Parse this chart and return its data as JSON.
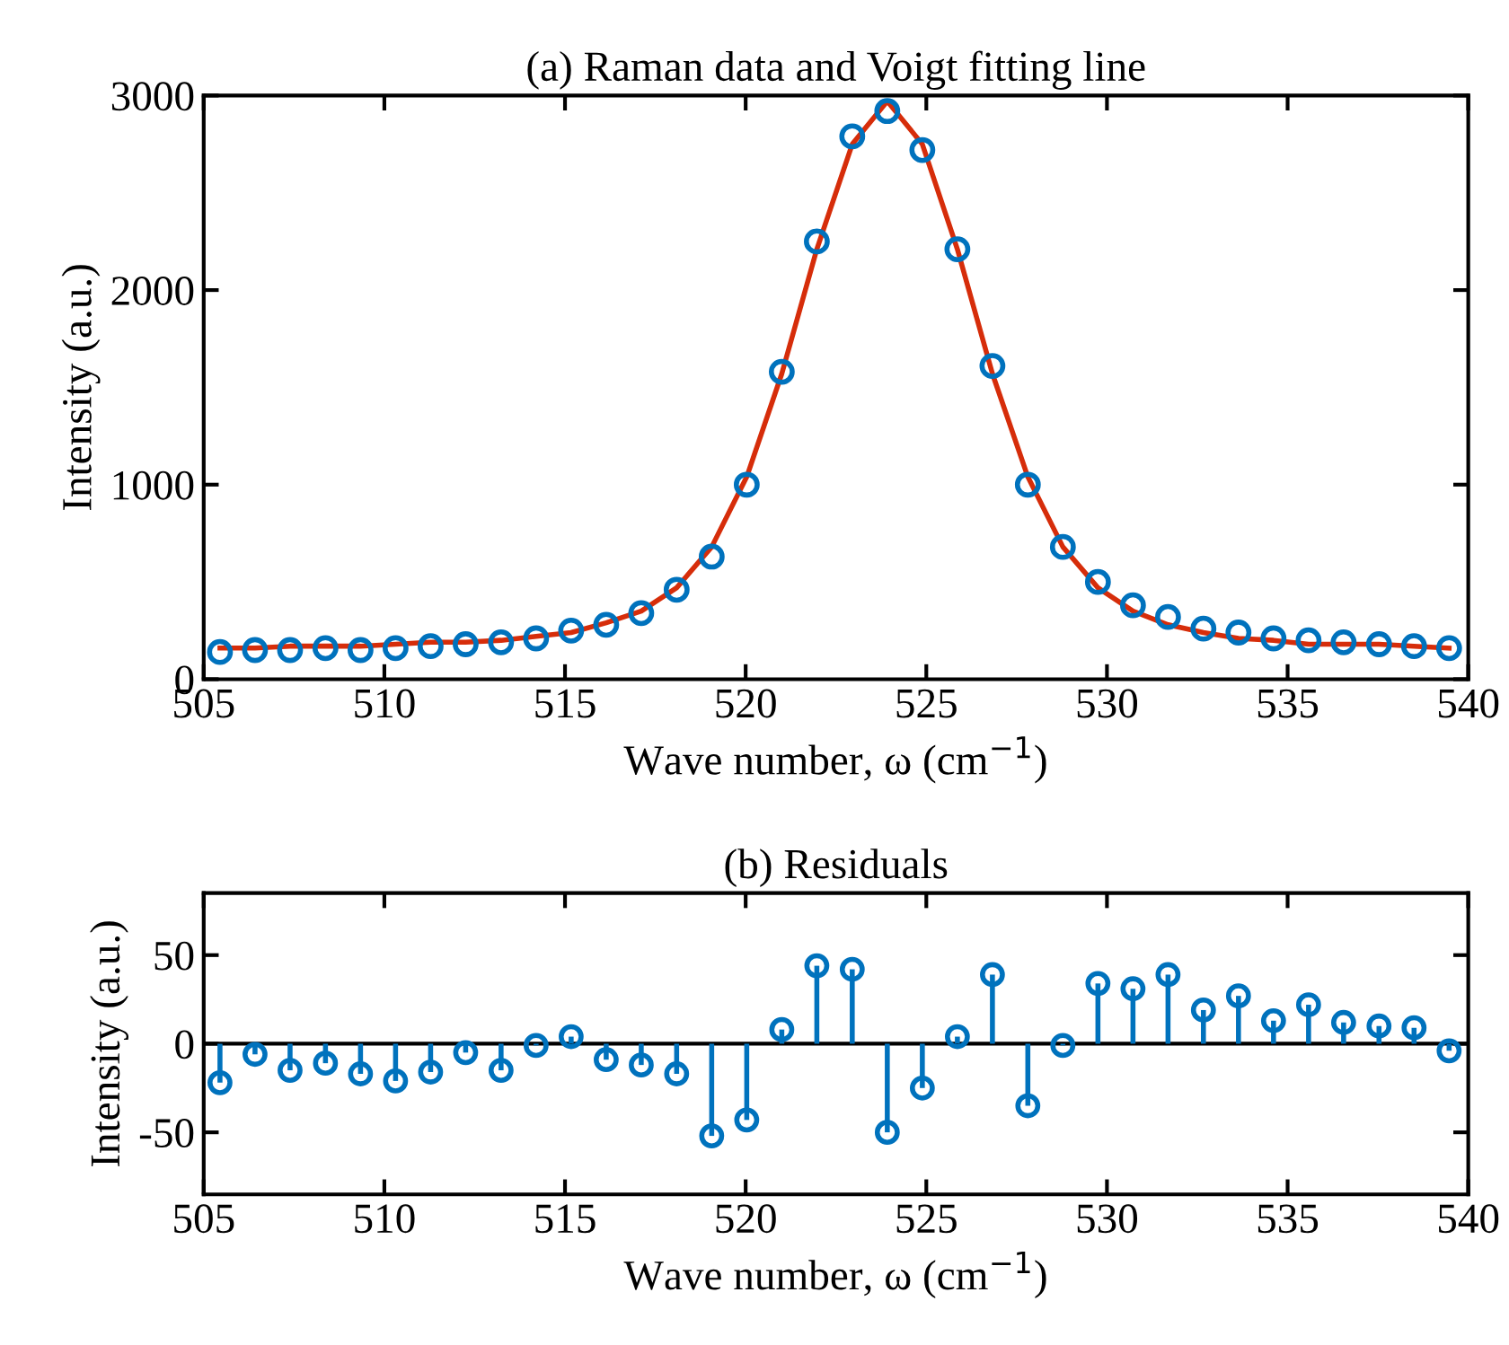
{
  "chart_data": [
    {
      "type": "scatter",
      "title": "(a) Raman data and Voigt fitting line",
      "xlabel": "Wave number, ω (cm$^{−1}$)",
      "ylabel": "Intensity (a.u.)",
      "x": [
        505.45,
        506.42,
        507.39,
        508.37,
        509.34,
        510.31,
        511.28,
        512.25,
        513.23,
        514.2,
        515.17,
        516.14,
        517.11,
        518.09,
        519.06,
        520.03,
        521.0,
        521.97,
        522.95,
        523.92,
        524.89,
        525.86,
        526.83,
        527.81,
        528.78,
        529.75,
        530.72,
        531.69,
        532.67,
        533.64,
        534.61,
        535.58,
        536.55,
        537.53,
        538.5,
        539.47
      ],
      "xlim": [
        505,
        540
      ],
      "xticks": [
        505,
        510,
        515,
        520,
        525,
        530,
        535,
        540
      ],
      "ylim": [
        0,
        3000
      ],
      "yticks": [
        0,
        1000,
        2000,
        3000
      ],
      "grid": false,
      "series": [
        {
          "type": "scatter",
          "color": "#0072bd",
          "marker": "circle",
          "values": [
            140,
            150,
            150,
            160,
            150,
            160,
            170,
            180,
            190,
            210,
            250,
            280,
            340,
            460,
            630,
            1000,
            1580,
            2250,
            2790,
            2920,
            2720,
            2210,
            1610,
            1000,
            680,
            500,
            380,
            320,
            260,
            240,
            210,
            200,
            190,
            180,
            170,
            160
          ]
        },
        {
          "type": "line",
          "color": "#d62d0a",
          "marker": "none",
          "line_style": "solid",
          "values": [
            160,
            160,
            170,
            170,
            170,
            180,
            190,
            190,
            200,
            220,
            240,
            290,
            350,
            470,
            680,
            1040,
            1570,
            2210,
            2750,
            2970,
            2750,
            2210,
            1570,
            1040,
            680,
            470,
            350,
            280,
            240,
            210,
            200,
            180,
            180,
            180,
            170,
            160
          ]
        }
      ]
    },
    {
      "type": "lollipop",
      "title": "(b) Residuals",
      "xlabel": "Wave number, ω (cm$^{−1}$)",
      "ylabel": "Intensity (a.u.)",
      "x": [
        505.45,
        506.42,
        507.39,
        508.37,
        509.34,
        510.31,
        511.28,
        512.25,
        513.23,
        514.2,
        515.17,
        516.14,
        517.11,
        518.09,
        519.06,
        520.03,
        521.0,
        521.97,
        522.95,
        523.92,
        524.89,
        525.86,
        526.83,
        527.81,
        528.78,
        529.75,
        530.72,
        531.69,
        532.67,
        533.64,
        534.61,
        535.58,
        536.55,
        537.53,
        538.5,
        539.47
      ],
      "xlim": [
        505,
        540
      ],
      "xticks": [
        505,
        510,
        515,
        520,
        525,
        530,
        535,
        540
      ],
      "ylim": [
        -85,
        85
      ],
      "yticks": [
        -50,
        0,
        50
      ],
      "grid": false,
      "marker": "circle",
      "color": "#0072bd",
      "ref_lines": [
        {
          "axis": "y",
          "value": 0,
          "color": "#000000"
        }
      ],
      "values": [
        -22,
        -6,
        -15,
        -11,
        -17,
        -21,
        -16,
        -5,
        -15,
        -1,
        4,
        -9,
        -12,
        -17,
        -52,
        -43,
        8,
        44,
        42,
        -50,
        -25,
        4,
        39,
        -35,
        -1,
        34,
        31,
        39,
        19,
        27,
        13,
        22,
        12,
        10,
        9,
        -4
      ]
    }
  ]
}
